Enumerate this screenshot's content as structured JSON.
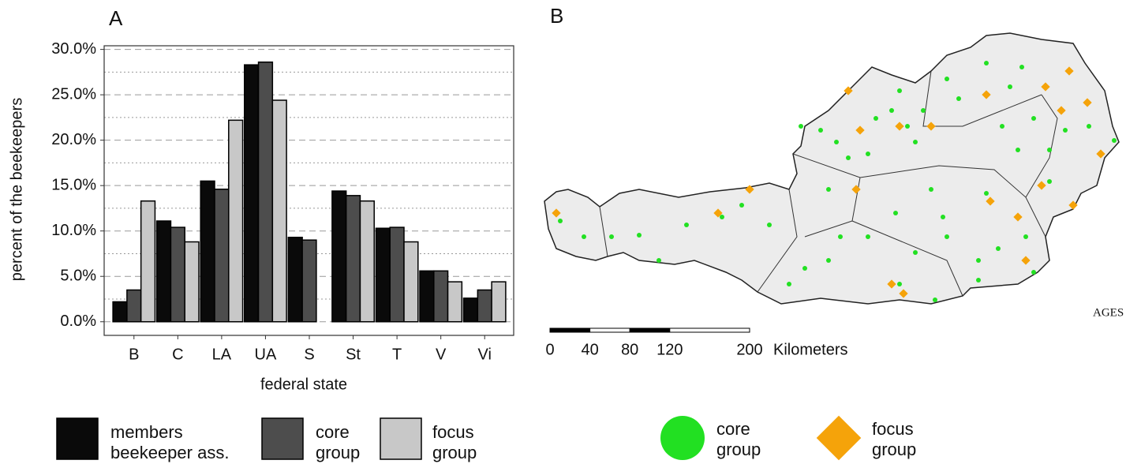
{
  "chart_data": {
    "type": "bar",
    "panel_label": "A",
    "x_label": "federal state",
    "y_label": "percent of the beekeepers",
    "categories": [
      "B",
      "C",
      "LA",
      "UA",
      "S",
      "St",
      "T",
      "V",
      "Vi"
    ],
    "series": [
      {
        "name": "members beekeeper ass.",
        "color": "#0a0a0a",
        "values": [
          2.2,
          11.1,
          15.5,
          28.3,
          9.3,
          14.4,
          10.3,
          5.6,
          2.6
        ]
      },
      {
        "name": "core group",
        "color": "#4d4d4d",
        "values": [
          3.5,
          10.4,
          14.6,
          28.6,
          9.0,
          13.9,
          10.4,
          5.6,
          3.5
        ]
      },
      {
        "name": "focus group",
        "color": "#c8c8c8",
        "values": [
          13.3,
          8.8,
          22.2,
          24.4,
          0,
          13.3,
          8.8,
          4.4,
          4.4
        ]
      }
    ],
    "ylim": [
      -1.5,
      30.4
    ],
    "yticks": [
      {
        "value": 0,
        "label": "0.0%"
      },
      {
        "value": 5,
        "label": "5.0%"
      },
      {
        "value": 10,
        "label": "10.0%"
      },
      {
        "value": 15,
        "label": "15.0%"
      },
      {
        "value": 20,
        "label": "20.0%"
      },
      {
        "value": 25,
        "label": "25.0%"
      },
      {
        "value": 30,
        "label": "30.0%"
      }
    ],
    "minor_grid": [
      2.5,
      7.5,
      12.5,
      17.5,
      22.5,
      27.5
    ],
    "grid": true
  },
  "map": {
    "panel_label": "B",
    "scale_ticks": [
      0,
      40,
      80,
      120,
      200
    ],
    "scale_unit": "Kilometers",
    "logo": "AGES",
    "legend": [
      {
        "label": "core group",
        "color": "#22e022"
      },
      {
        "label": "focus group",
        "color": "#f5a30a"
      }
    ]
  }
}
